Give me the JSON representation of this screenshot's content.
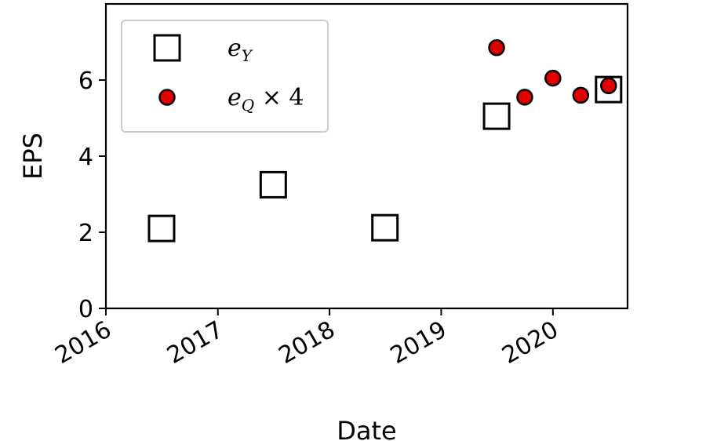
{
  "chart_data": {
    "type": "scatter",
    "xlabel": "Date",
    "ylabel": "EPS",
    "x_axis_type": "date",
    "xlim": [
      "2016-01-01",
      "2020-09-01"
    ],
    "ylim": [
      0,
      8
    ],
    "x_ticks": [
      {
        "date": "2016-01-01",
        "label": "2016"
      },
      {
        "date": "2017-01-01",
        "label": "2017"
      },
      {
        "date": "2018-01-01",
        "label": "2018"
      },
      {
        "date": "2019-01-01",
        "label": "2019"
      },
      {
        "date": "2020-01-01",
        "label": "2020"
      }
    ],
    "y_ticks": [
      0,
      2,
      4,
      6
    ],
    "grid": false,
    "legend_position": "top-left",
    "series": [
      {
        "name": "e_Y",
        "legend_base": "e",
        "legend_sub": "Y",
        "legend_suffix": "",
        "marker": "square",
        "fill": "none",
        "edge_color": "#000000",
        "points": [
          {
            "x": "2016-07-01",
            "y": 2.1
          },
          {
            "x": "2017-07-01",
            "y": 3.25
          },
          {
            "x": "2018-07-01",
            "y": 2.12
          },
          {
            "x": "2019-07-01",
            "y": 5.05
          },
          {
            "x": "2020-07-01",
            "y": 5.75
          }
        ]
      },
      {
        "name": "e_Q × 4",
        "legend_base": "e",
        "legend_sub": "Q",
        "legend_suffix": " × 4",
        "marker": "circle",
        "fill": "#e00000",
        "edge_color": "#000000",
        "points": [
          {
            "x": "2019-07-01",
            "y": 6.85
          },
          {
            "x": "2019-10-01",
            "y": 5.55
          },
          {
            "x": "2020-01-01",
            "y": 6.05
          },
          {
            "x": "2020-04-01",
            "y": 5.6
          },
          {
            "x": "2020-07-01",
            "y": 5.85
          }
        ]
      }
    ]
  }
}
